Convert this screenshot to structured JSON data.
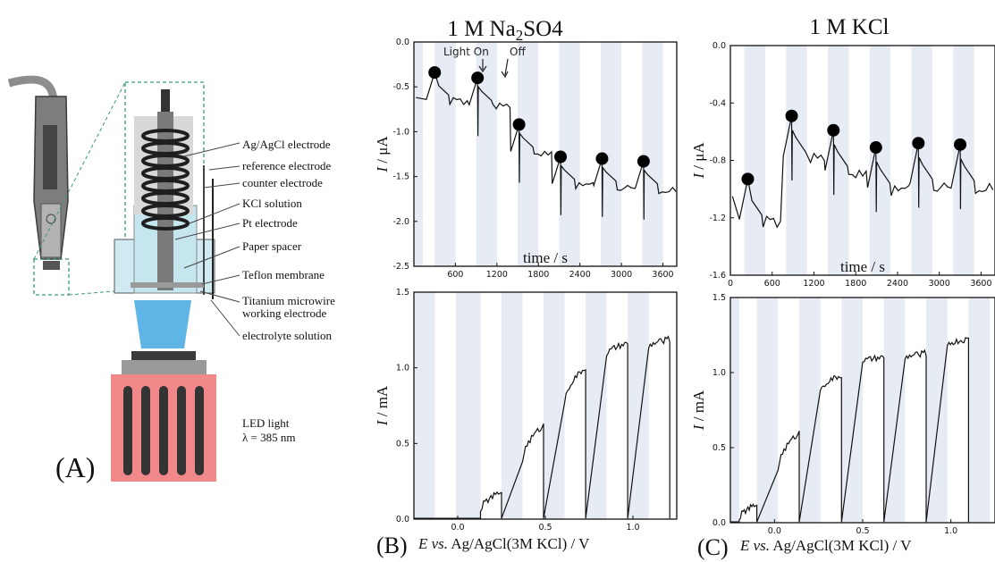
{
  "panel_a": {
    "letter": "(A)",
    "labels": {
      "agagcl": "Ag/AgCl electrode",
      "reference": "reference electrode",
      "counter": "counter electrode",
      "kcl": "KCl solution",
      "pt": "Pt electrode",
      "paper": "Paper spacer",
      "teflon": "Teflon membrane",
      "ti1": "Titanium microwire",
      "ti2": "working electrode",
      "electrolyte": "electrolyte solution",
      "led1": "LED light",
      "led2": "λ = 385 nm"
    }
  },
  "panel_b": {
    "letter": "(B)",
    "title_main": "1 M Na",
    "title_sub": "2",
    "title_tail": "SO4",
    "xlabel_E": "E",
    "xlabel_vs": "vs.",
    "xlabel_rest": "Ag/AgCl(3M KCl) / V",
    "annotation_on": "Light On",
    "annotation_off": "Off"
  },
  "panel_c": {
    "letter": "(C)",
    "title": "1 M KCl",
    "xlabel_E": "E",
    "xlabel_vs": "vs.",
    "xlabel_rest": "Ag/AgCl(3M KCl) / V"
  },
  "colors": {
    "shade": "#e6ebf4",
    "trace": "#111111",
    "fade": "#8a8a8a",
    "led": "#f1888a",
    "water": "#bfe4ee"
  },
  "chart_data": [
    {
      "id": "b-top",
      "type": "line",
      "xlabel": "time / s",
      "ylabel_var": "I",
      "ylabel_unit": " / μA",
      "xlim": [
        0,
        3800
      ],
      "ylim": [
        -2.5,
        0.0
      ],
      "xticks": [
        600,
        1200,
        1800,
        2400,
        3000,
        3600
      ],
      "yticks": [
        0.0,
        -0.5,
        -1.0,
        -1.5,
        -2.0,
        -2.5
      ],
      "shaded": [
        [
          0,
          130
        ],
        [
          300,
          600
        ],
        [
          900,
          1200
        ],
        [
          1500,
          1800
        ],
        [
          2100,
          2400
        ],
        [
          2700,
          3000
        ],
        [
          3300,
          3600
        ]
      ],
      "markers": [
        [
          300,
          -0.34
        ],
        [
          920,
          -0.4
        ],
        [
          1520,
          -0.92
        ],
        [
          2120,
          -1.28
        ],
        [
          2720,
          -1.3
        ],
        [
          3320,
          -1.33
        ]
      ]
    },
    {
      "id": "c-top",
      "type": "line",
      "xlabel": "time / s",
      "ylabel_var": "I",
      "ylabel_unit": " / μA",
      "xlim": [
        0,
        3800
      ],
      "ylim": [
        -1.6,
        0.0
      ],
      "xticks": [
        0,
        600,
        1200,
        1800,
        2400,
        3000,
        3600
      ],
      "yticks": [
        0.0,
        -0.4,
        -0.8,
        -1.2,
        -1.6
      ],
      "shaded": [
        [
          200,
          500
        ],
        [
          800,
          1100
        ],
        [
          1400,
          1700
        ],
        [
          2000,
          2300
        ],
        [
          2600,
          2900
        ],
        [
          3200,
          3500
        ]
      ],
      "markers": [
        [
          250,
          -0.93
        ],
        [
          880,
          -0.49
        ],
        [
          1480,
          -0.59
        ],
        [
          2090,
          -0.71
        ],
        [
          2700,
          -0.68
        ],
        [
          3300,
          -0.69
        ]
      ]
    },
    {
      "id": "b-bot",
      "type": "line",
      "ylabel_var": "I",
      "ylabel_unit": " / mA",
      "xlim": [
        -0.25,
        1.25
      ],
      "ylim": [
        0.0,
        1.5
      ],
      "xticks": [
        0.0,
        0.5,
        1.0
      ],
      "yticks": [
        0.0,
        0.5,
        1.0,
        1.5
      ],
      "shaded": [
        [
          -0.25,
          -0.13
        ],
        [
          -0.01,
          0.13
        ],
        [
          0.25,
          0.37
        ],
        [
          0.49,
          0.61
        ],
        [
          0.73,
          0.85
        ],
        [
          0.97,
          1.09
        ]
      ],
      "steps": [
        {
          "x0": 0.13,
          "x1": 0.25,
          "y0": 0.05,
          "y1": 0.18
        },
        {
          "x0": 0.37,
          "x1": 0.49,
          "y0": 0.38,
          "y1": 0.62
        },
        {
          "x0": 0.61,
          "x1": 0.73,
          "y0": 0.77,
          "y1": 1.0
        },
        {
          "x0": 0.85,
          "x1": 0.97,
          "y0": 1.08,
          "y1": 1.16
        },
        {
          "x0": 1.09,
          "x1": 1.21,
          "y0": 1.13,
          "y1": 1.19
        }
      ]
    },
    {
      "id": "c-bot",
      "type": "line",
      "ylabel_var": "I",
      "ylabel_unit": " / mA",
      "xlim": [
        -0.25,
        1.25
      ],
      "ylim": [
        0.0,
        1.5
      ],
      "xticks": [
        0.0,
        0.5,
        1.0
      ],
      "yticks": [
        0.0,
        0.5,
        1.0,
        1.5
      ],
      "shaded": [
        [
          -0.25,
          -0.2
        ],
        [
          -0.1,
          0.02
        ],
        [
          0.14,
          0.26
        ],
        [
          0.38,
          0.5
        ],
        [
          0.62,
          0.74
        ],
        [
          0.86,
          0.98
        ],
        [
          1.1,
          1.22
        ]
      ],
      "steps": [
        {
          "x0": -0.2,
          "x1": -0.1,
          "y0": 0.02,
          "y1": 0.12
        },
        {
          "x0": 0.02,
          "x1": 0.14,
          "y0": 0.35,
          "y1": 0.6
        },
        {
          "x0": 0.26,
          "x1": 0.38,
          "y0": 0.88,
          "y1": 0.98
        },
        {
          "x0": 0.5,
          "x1": 0.62,
          "y0": 1.07,
          "y1": 1.1
        },
        {
          "x0": 0.74,
          "x1": 0.86,
          "y0": 1.09,
          "y1": 1.13
        },
        {
          "x0": 0.98,
          "x1": 1.1,
          "y0": 1.18,
          "y1": 1.22
        }
      ]
    }
  ]
}
